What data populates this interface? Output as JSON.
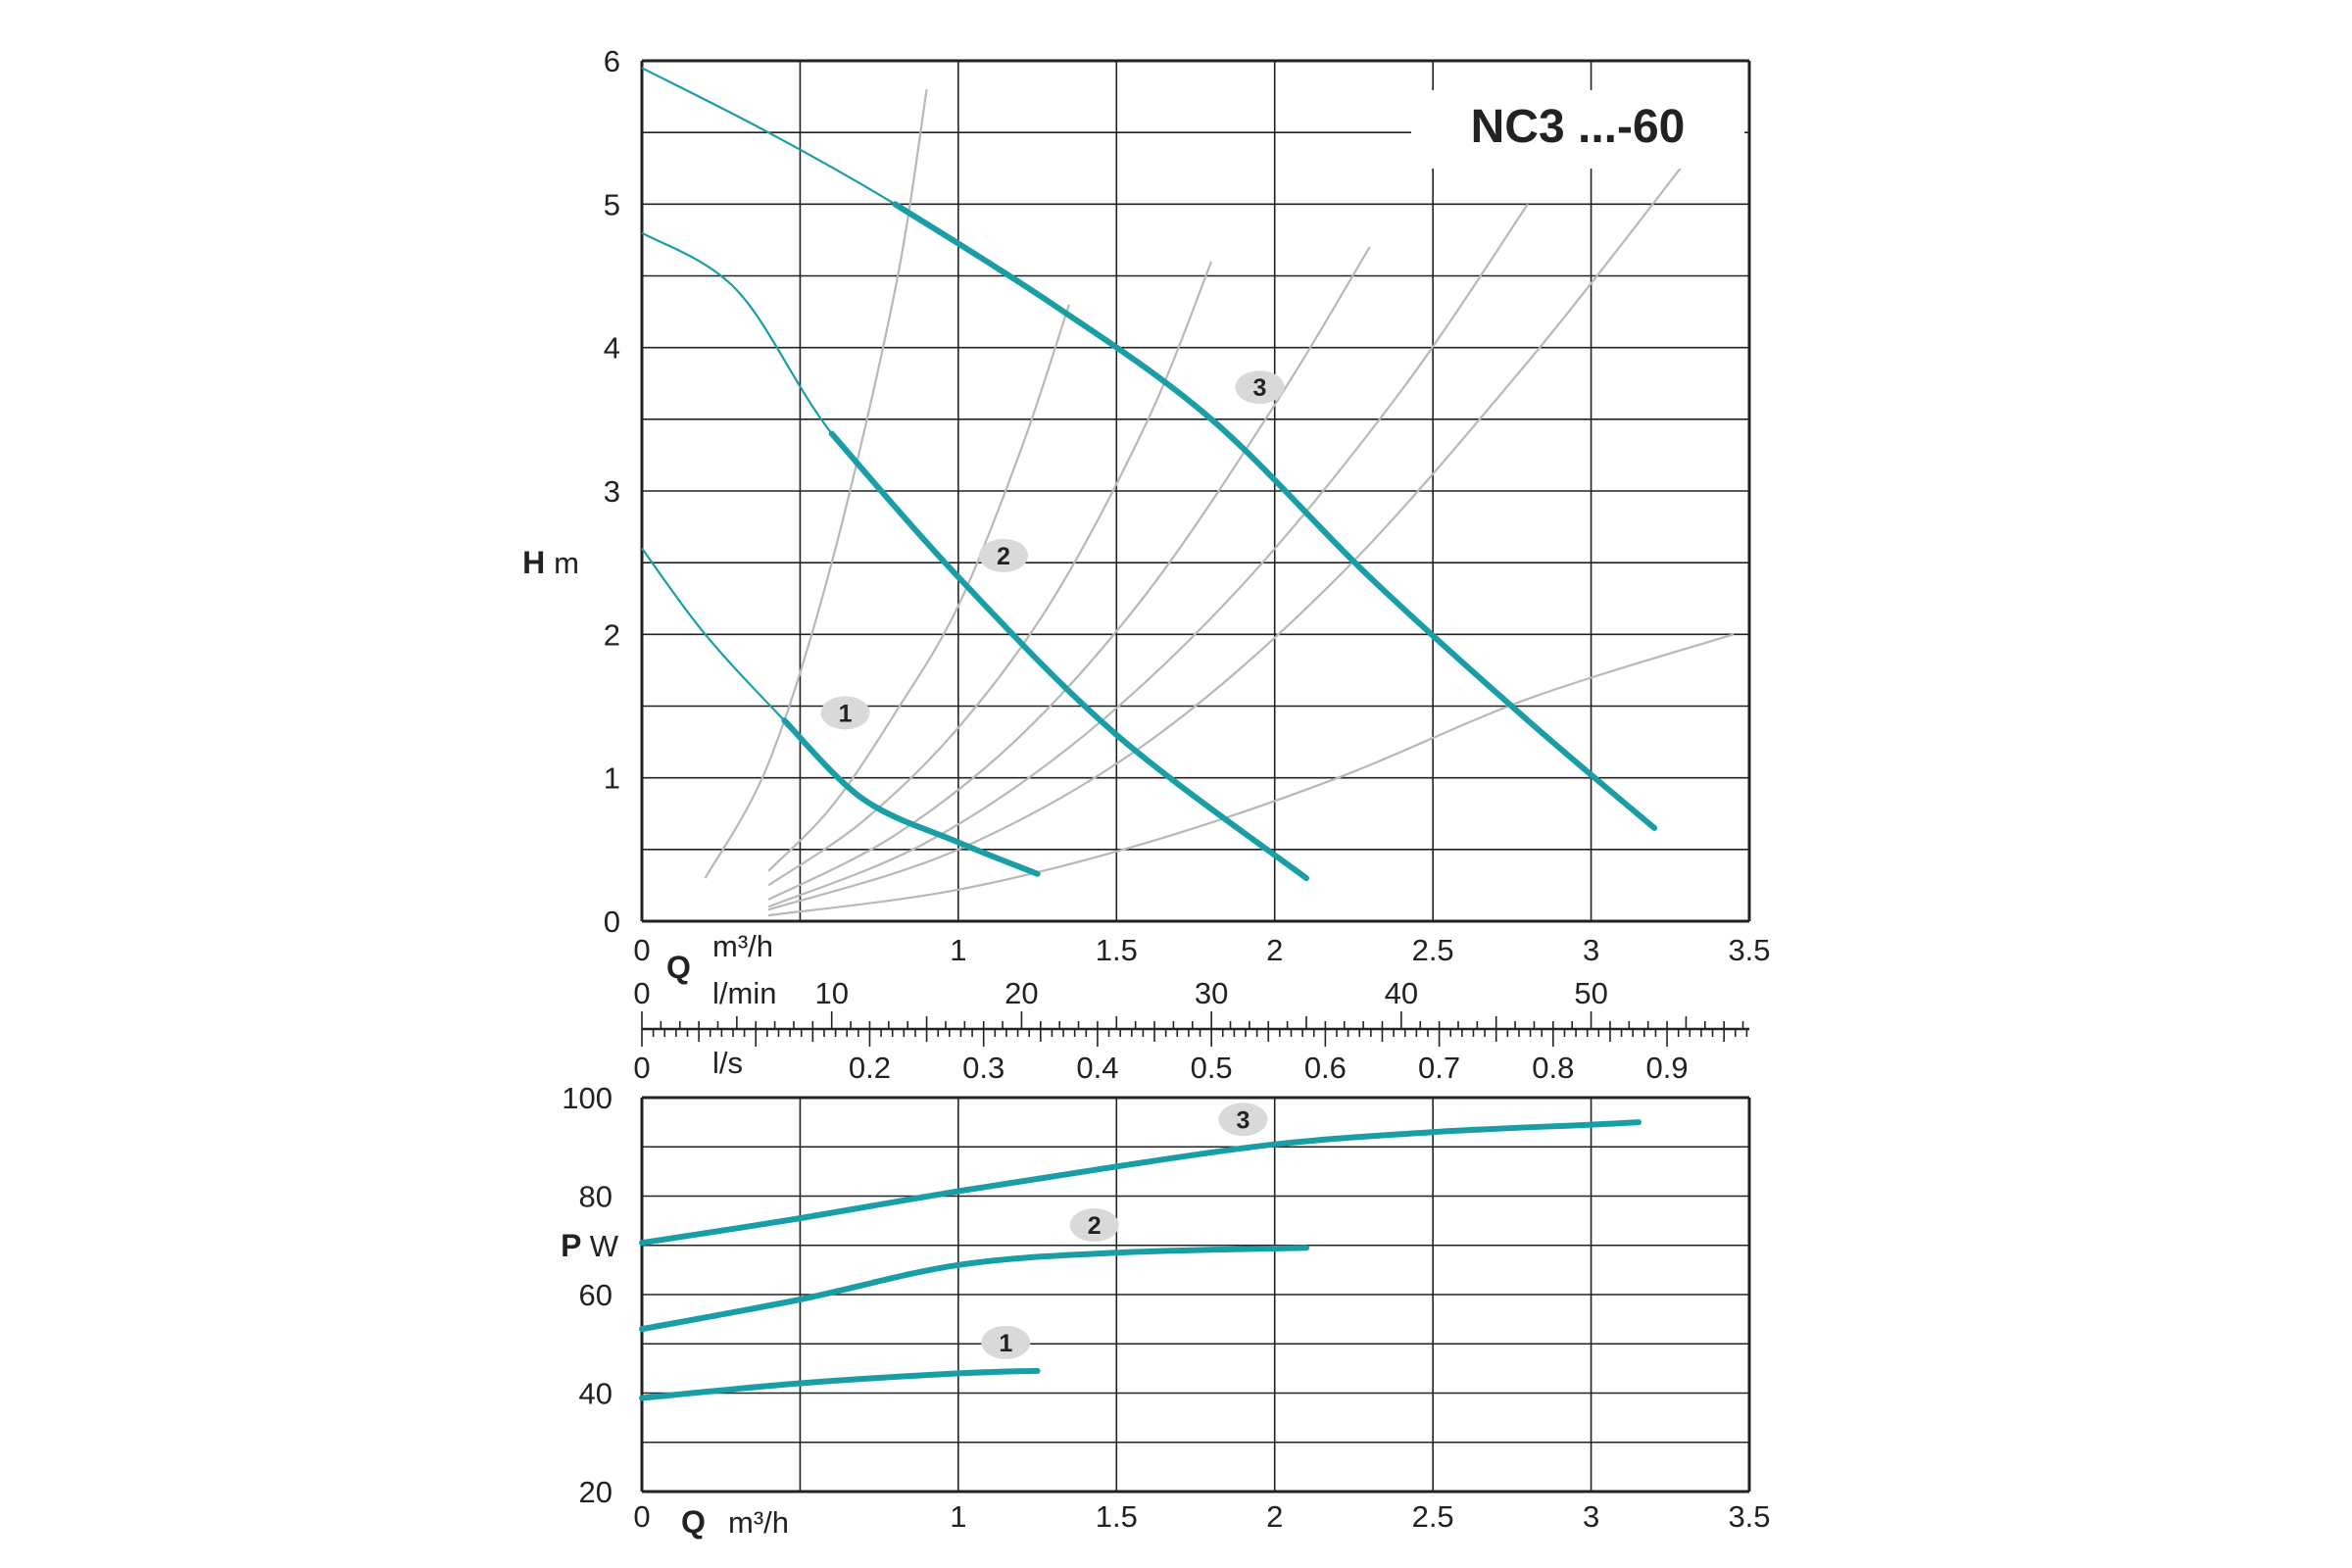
{
  "title": "NC3 ...-60",
  "colors": {
    "curve": "#1a9ea6",
    "grid": "#222222",
    "system_curve": "#b8b8b8",
    "badge_fill": "#d9d9d9"
  },
  "head_axis_label": {
    "letter": "H",
    "unit": "m"
  },
  "power_axis_label": {
    "letter": "P",
    "unit": "W"
  },
  "flow_axis_label": {
    "letter": "Q",
    "unit": "m³/h"
  },
  "lmin_axis_label": "l/min",
  "ls_axis_label": "l/s",
  "x_ticks": [
    "0",
    "1",
    "1.5",
    "2",
    "2.5",
    "3",
    "3.5"
  ],
  "head_y_ticks": [
    "0",
    "1",
    "2",
    "3",
    "4",
    "5",
    "6"
  ],
  "power_y_ticks": [
    "20",
    "40",
    "60",
    "80",
    "100"
  ],
  "lmin_ticks": [
    "0",
    "10",
    "20",
    "30",
    "40",
    "50"
  ],
  "ls_ticks": [
    "0",
    "0.2",
    "0.3",
    "0.4",
    "0.5",
    "0.6",
    "0.7",
    "0.8",
    "0.9"
  ],
  "chart_data": [
    {
      "type": "line",
      "xlabel": "Q m³/h",
      "ylabel": "H m",
      "xlim": [
        0,
        3.5
      ],
      "ylim": [
        0,
        6
      ],
      "grid": true,
      "series": [
        {
          "name": "1",
          "x": [
            0,
            0.2,
            0.45,
            0.7,
            1.0,
            1.25
          ],
          "y": [
            2.6,
            2.0,
            1.4,
            0.85,
            0.55,
            0.33
          ]
        },
        {
          "name": "2",
          "x": [
            0,
            0.3,
            0.6,
            1.0,
            1.5,
            2.1
          ],
          "y": [
            4.8,
            4.4,
            3.4,
            2.4,
            1.3,
            0.3
          ]
        },
        {
          "name": "3",
          "x": [
            0,
            0.4,
            0.8,
            1.3,
            1.8,
            2.3,
            2.8,
            3.2
          ],
          "y": [
            5.95,
            5.5,
            5.0,
            4.3,
            3.5,
            2.4,
            1.4,
            0.65
          ]
        }
      ],
      "system_curves": [
        {
          "x": [
            0.2,
            0.4,
            0.6,
            0.8,
            0.9
          ],
          "y": [
            0.3,
            1.1,
            2.5,
            4.4,
            5.8
          ]
        },
        {
          "x": [
            0.4,
            0.6,
            0.8,
            1.0,
            1.2,
            1.35
          ],
          "y": [
            0.35,
            0.8,
            1.45,
            2.2,
            3.3,
            4.3
          ]
        },
        {
          "x": [
            0.4,
            0.7,
            1.0,
            1.3,
            1.6,
            1.8
          ],
          "y": [
            0.25,
            0.7,
            1.35,
            2.25,
            3.5,
            4.6
          ]
        },
        {
          "x": [
            0.4,
            0.8,
            1.2,
            1.6,
            2.0,
            2.3
          ],
          "y": [
            0.15,
            0.6,
            1.3,
            2.3,
            3.6,
            4.7
          ]
        },
        {
          "x": [
            0.4,
            0.9,
            1.4,
            1.9,
            2.4,
            2.8
          ],
          "y": [
            0.1,
            0.55,
            1.3,
            2.35,
            3.7,
            5.0
          ]
        },
        {
          "x": [
            0.4,
            1.0,
            1.6,
            2.2,
            2.8,
            3.3
          ],
          "y": [
            0.08,
            0.5,
            1.25,
            2.4,
            3.9,
            5.3
          ]
        },
        {
          "x": [
            0.4,
            1.0,
            1.6,
            2.2,
            2.8,
            3.45
          ],
          "y": [
            0.04,
            0.22,
            0.55,
            1.0,
            1.55,
            2.0
          ]
        }
      ]
    },
    {
      "type": "line",
      "xlabel": "Q m³/h",
      "ylabel": "P W",
      "xlim": [
        0,
        3.5
      ],
      "ylim": [
        20,
        100
      ],
      "grid": true,
      "series": [
        {
          "name": "1",
          "x": [
            0,
            0.5,
            1.0,
            1.25
          ],
          "y": [
            39,
            42,
            44,
            44.5
          ]
        },
        {
          "name": "2",
          "x": [
            0,
            0.5,
            1.0,
            1.5,
            2.1
          ],
          "y": [
            53,
            59,
            66,
            68.5,
            69.5
          ]
        },
        {
          "name": "3",
          "x": [
            0,
            0.5,
            1.0,
            1.5,
            2.0,
            2.5,
            3.0,
            3.15
          ],
          "y": [
            70.5,
            75.5,
            81,
            86,
            90.5,
            93,
            94.5,
            95
          ]
        }
      ]
    }
  ]
}
